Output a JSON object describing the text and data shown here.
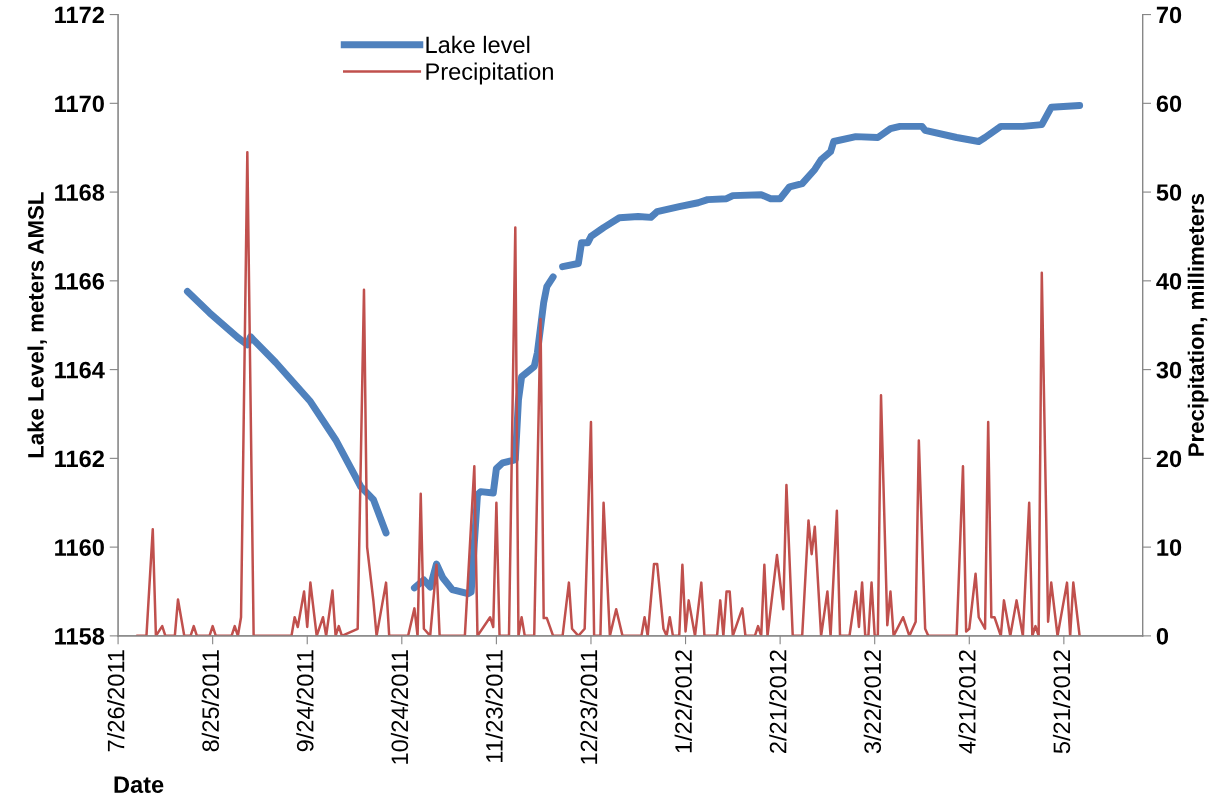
{
  "chart_data": {
    "type": "line",
    "xlabel": "Date",
    "ylabel": "Lake Level, meters AMSL",
    "y2label": "Precipitation, millimeters",
    "xlim": [
      "2011-07-26",
      "2012-06-15"
    ],
    "xticks": [
      {
        "value": "2011-07-26",
        "label": "7/26/2011"
      },
      {
        "value": "2011-08-25",
        "label": "8/25/2011"
      },
      {
        "value": "2011-09-24",
        "label": "9/24/2011"
      },
      {
        "value": "2011-10-24",
        "label": "10/24/2011"
      },
      {
        "value": "2011-11-23",
        "label": "11/23/2011"
      },
      {
        "value": "2011-12-23",
        "label": "12/23/2011"
      },
      {
        "value": "2012-01-22",
        "label": "1/22/2012"
      },
      {
        "value": "2012-02-21",
        "label": "2/21/2012"
      },
      {
        "value": "2012-03-22",
        "label": "3/22/2012"
      },
      {
        "value": "2012-04-21",
        "label": "4/21/2012"
      },
      {
        "value": "2012-05-21",
        "label": "5/21/2012"
      }
    ],
    "ylim": [
      1158,
      1172
    ],
    "yticks": [
      1158,
      1160,
      1162,
      1164,
      1166,
      1168,
      1170,
      1172
    ],
    "y2lim": [
      0,
      70
    ],
    "y2ticks": [
      0,
      10,
      20,
      30,
      40,
      50,
      60,
      70
    ],
    "grid": false,
    "legend": "top left",
    "series": [
      {
        "name": "Lake level",
        "color": "#4f81bd",
        "x": [
          "2011-08-17",
          "2011-08-24",
          "2011-09-02",
          "2011-09-05",
          "2011-09-06",
          "2011-09-14",
          "2011-09-25",
          "2011-10-03",
          "2011-10-11",
          "2011-10-15",
          "2011-10-19",
          "2011-10-24",
          "2011-10-28",
          "2011-10-31",
          "2011-11-02",
          "2011-11-04",
          "2011-11-06",
          "2011-11-09",
          "2011-11-14",
          "2011-11-15",
          "2011-11-17",
          "2011-11-18",
          "2011-11-22",
          "2011-11-23",
          "2011-11-25",
          "2011-11-28",
          "2011-11-29",
          "2011-11-30",
          "2011-12-01",
          "2011-12-05",
          "2011-12-06",
          "2011-12-08",
          "2011-12-09",
          "2011-12-11",
          "2011-12-12",
          "2011-12-14",
          "2011-12-19",
          "2011-12-20",
          "2011-12-22",
          "2011-12-23",
          "2011-12-27",
          "2012-01-01",
          "2012-01-07",
          "2012-01-11",
          "2012-01-13",
          "2012-01-20",
          "2012-01-26",
          "2012-01-29",
          "2012-02-04",
          "2012-02-06",
          "2012-02-15",
          "2012-02-18",
          "2012-02-21",
          "2012-02-24",
          "2012-02-28",
          "2012-03-03",
          "2012-03-05",
          "2012-03-08",
          "2012-03-09",
          "2012-03-16",
          "2012-03-23",
          "2012-03-27",
          "2012-03-30",
          "2012-04-06",
          "2012-04-07",
          "2012-04-17",
          "2012-04-24",
          "2012-04-26",
          "2012-05-01",
          "2012-05-08",
          "2012-05-14",
          "2012-05-17",
          "2012-05-26"
        ],
        "values": [
          1165.76,
          1165.28,
          1164.72,
          1164.56,
          1164.74,
          1164.16,
          1163.28,
          1162.42,
          1161.36,
          1161.07,
          1160.32,
          null,
          1159.08,
          1159.26,
          1159.1,
          1159.62,
          1159.31,
          1159.04,
          1158.95,
          1158.99,
          1161.18,
          1161.25,
          1161.22,
          1161.77,
          1161.9,
          1161.95,
          1161.97,
          1163.32,
          1163.84,
          1164.07,
          1164.38,
          1165.51,
          1165.87,
          1166.09,
          null,
          1166.32,
          1166.39,
          1166.86,
          1166.86,
          1167.0,
          1167.2,
          1167.42,
          1167.45,
          1167.43,
          1167.56,
          1167.67,
          1167.76,
          1167.83,
          1167.85,
          1167.92,
          1167.94,
          1167.85,
          1167.85,
          1168.12,
          1168.19,
          1168.51,
          1168.73,
          1168.91,
          1169.14,
          1169.25,
          1169.23,
          1169.43,
          1169.48,
          1169.48,
          1169.39,
          1169.23,
          1169.14,
          1169.23,
          1169.48,
          1169.48,
          1169.52,
          1169.91,
          1169.95
        ]
      },
      {
        "name": "Precipitation",
        "color": "#c0504d",
        "axis": "y2",
        "x": [
          "2011-08-01",
          "2011-08-04",
          "2011-08-06",
          "2011-08-07",
          "2011-08-09",
          "2011-08-10",
          "2011-08-13",
          "2011-08-14",
          "2011-08-16",
          "2011-08-18",
          "2011-08-19",
          "2011-08-20",
          "2011-08-24",
          "2011-08-25",
          "2011-08-26",
          "2011-08-31",
          "2011-09-01",
          "2011-09-02",
          "2011-09-03",
          "2011-09-05",
          "2011-09-07",
          "2011-09-19",
          "2011-09-20",
          "2011-09-21",
          "2011-09-23",
          "2011-09-24",
          "2011-09-25",
          "2011-09-27",
          "2011-09-29",
          "2011-09-30",
          "2011-10-02",
          "2011-10-03",
          "2011-10-04",
          "2011-10-05",
          "2011-10-10",
          "2011-10-12",
          "2011-10-13",
          "2011-10-15",
          "2011-10-16",
          "2011-10-19",
          "2011-10-20",
          "2011-10-26",
          "2011-10-28",
          "2011-10-29",
          "2011-10-30",
          "2011-10-31",
          "2011-11-02",
          "2011-11-04",
          "2011-11-05",
          "2011-11-13",
          "2011-11-16",
          "2011-11-17",
          "2011-11-21",
          "2011-11-22",
          "2011-11-23",
          "2011-11-24",
          "2011-11-27",
          "2011-11-29",
          "2011-11-30",
          "2011-12-01",
          "2011-12-02",
          "2011-12-05",
          "2011-12-07",
          "2011-12-08",
          "2011-12-09",
          "2011-12-11",
          "2011-12-14",
          "2011-12-16",
          "2011-12-17",
          "2011-12-19",
          "2011-12-21",
          "2011-12-23",
          "2011-12-24",
          "2011-12-26",
          "2011-12-27",
          "2011-12-29",
          "2011-12-31",
          "2012-01-02",
          "2012-01-08",
          "2012-01-09",
          "2012-01-10",
          "2012-01-12",
          "2012-01-13",
          "2012-01-15",
          "2012-01-16",
          "2012-01-17",
          "2012-01-18",
          "2012-01-20",
          "2012-01-21",
          "2012-01-22",
          "2012-01-23",
          "2012-01-25",
          "2012-01-27",
          "2012-01-28",
          "2012-02-01",
          "2012-02-02",
          "2012-02-03",
          "2012-02-04",
          "2012-02-05",
          "2012-02-06",
          "2012-02-09",
          "2012-02-10",
          "2012-02-13",
          "2012-02-14",
          "2012-02-15",
          "2012-02-16",
          "2012-02-17",
          "2012-02-20",
          "2012-02-22",
          "2012-02-23",
          "2012-02-25",
          "2012-02-28",
          "2012-03-01",
          "2012-03-02",
          "2012-03-03",
          "2012-03-05",
          "2012-03-07",
          "2012-03-08",
          "2012-03-10",
          "2012-03-11",
          "2012-03-14",
          "2012-03-16",
          "2012-03-17",
          "2012-03-18",
          "2012-03-19",
          "2012-03-20",
          "2012-03-21",
          "2012-03-22",
          "2012-03-23",
          "2012-03-24",
          "2012-03-26",
          "2012-03-27",
          "2012-03-28",
          "2012-03-31",
          "2012-04-02",
          "2012-04-04",
          "2012-04-05",
          "2012-04-07",
          "2012-04-08",
          "2012-04-17",
          "2012-04-19",
          "2012-04-20",
          "2012-04-21",
          "2012-04-23",
          "2012-04-24",
          "2012-04-26",
          "2012-04-27",
          "2012-04-28",
          "2012-04-29",
          "2012-05-01",
          "2012-05-02",
          "2012-05-04",
          "2012-05-06",
          "2012-05-08",
          "2012-05-10",
          "2012-05-11",
          "2012-05-12",
          "2012-05-13",
          "2012-05-14",
          "2012-05-16",
          "2012-05-17",
          "2012-05-19",
          "2012-05-22",
          "2012-05-23",
          "2012-05-24",
          "2012-05-26"
        ],
        "values": [
          0,
          0,
          12.0,
          0,
          1.1,
          0,
          0,
          4.1,
          0,
          0,
          1.1,
          0,
          0,
          1.1,
          0,
          0,
          1.1,
          0,
          2.1,
          54.5,
          0,
          0,
          2.1,
          1.0,
          5.0,
          1.0,
          6.0,
          0,
          2.1,
          0,
          5.1,
          0,
          1.1,
          0,
          0.8,
          39.0,
          10.0,
          3.9,
          0,
          6.0,
          0,
          0,
          3.1,
          0,
          16.0,
          0.8,
          0,
          8.0,
          0,
          0,
          19.1,
          0,
          2.1,
          1.0,
          15.0,
          0,
          0,
          46.0,
          0,
          2.1,
          0,
          0,
          35.7,
          2.0,
          2.0,
          0,
          0,
          6.0,
          0.8,
          0,
          0.8,
          24.1,
          0,
          0,
          15.0,
          0,
          3.0,
          0,
          0,
          2.1,
          0,
          8.1,
          8.1,
          0.8,
          0,
          2.1,
          0,
          0,
          8.0,
          0.5,
          4.0,
          0,
          6.0,
          0,
          0,
          4.0,
          0,
          5.0,
          5.0,
          0,
          3.1,
          0,
          0,
          1.1,
          0,
          8.0,
          0,
          9.1,
          3.0,
          17.0,
          0,
          0,
          13.0,
          9.2,
          12.3,
          0,
          5.0,
          0,
          14.1,
          0,
          0,
          5.0,
          1.0,
          6.0,
          0,
          0,
          6.0,
          0,
          0,
          27.1,
          1.2,
          5.0,
          0,
          2.1,
          0,
          1.6,
          22.0,
          0.8,
          0,
          0,
          19.1,
          0.5,
          0.8,
          7.0,
          2.1,
          0.8,
          24.1,
          2.1,
          2.1,
          0,
          4.0,
          0,
          4.0,
          0,
          15.0,
          0,
          1.1,
          0,
          40.9,
          1.6,
          6.0,
          0,
          6.0,
          0,
          6.0,
          0
        ]
      }
    ]
  }
}
